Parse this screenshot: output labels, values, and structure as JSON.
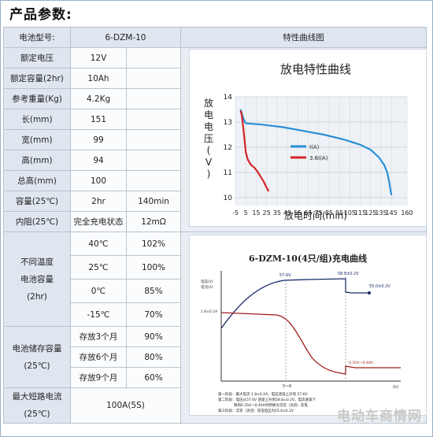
{
  "title": "产品参数:",
  "header": {
    "model_label": "电池型号:",
    "model_value": "6-DZM-10",
    "chart_header": "特性曲线图"
  },
  "specs": {
    "rated_voltage": {
      "label": "额定电压",
      "value": "12V"
    },
    "rated_capacity": {
      "label": "额定容量(2hr)",
      "value": "10Ah"
    },
    "weight": {
      "label": "参考重量(Kg)",
      "value": "4.2Kg"
    },
    "length": {
      "label": "长(mm)",
      "value": "151"
    },
    "width": {
      "label": "宽(mm)",
      "value": "99"
    },
    "height": {
      "label": "高(mm)",
      "value": "94"
    },
    "total_height": {
      "label": "总高(mm)",
      "value": "100"
    },
    "capacity_25": {
      "label": "容量(25℃)",
      "value": "2hr",
      "value2": "140min"
    },
    "internal_resistance": {
      "label": "内阻(25℃)",
      "value": "完全充电状态",
      "value2": "12mΩ"
    },
    "temp_capacity": {
      "label1": "不同温度",
      "label2": "电池容量",
      "label3": "(2hr)",
      "rows": [
        {
          "temp": "40℃",
          "pct": "102%"
        },
        {
          "temp": "25℃",
          "pct": "100%"
        },
        {
          "temp": "0℃",
          "pct": "85%"
        },
        {
          "temp": "-15℃",
          "pct": "70%"
        }
      ]
    },
    "storage_capacity": {
      "label1": "电池储存容量",
      "label2": "(25℃)",
      "rows": [
        {
          "period": "存放3个月",
          "pct": "90%"
        },
        {
          "period": "存放6个月",
          "pct": "80%"
        },
        {
          "period": "存放9个月",
          "pct": "60%"
        }
      ]
    },
    "max_short_current": {
      "label1": "最大短路电流",
      "label2": "(25℃)",
      "value": "100A(5S)"
    }
  },
  "chart_data": [
    {
      "type": "line",
      "title": "放电特性曲线",
      "xlabel": "放电时间(min)",
      "ylabel": "放电电压(V)",
      "xlim": [
        -5,
        160
      ],
      "ylim": [
        10,
        14
      ],
      "xticks": [
        -5,
        5,
        15,
        25,
        35,
        45,
        55,
        65,
        75,
        85,
        95,
        105,
        115,
        125,
        135,
        145,
        160
      ],
      "yticks": [
        10,
        11,
        12,
        13,
        14
      ],
      "grid": true,
      "legend": "center-right",
      "series": [
        {
          "name": "I(A)",
          "color": "#2b8fd6",
          "x": [
            0,
            3,
            5,
            20,
            40,
            60,
            80,
            100,
            115,
            125,
            133,
            138,
            141,
            143,
            145
          ],
          "y": [
            13.5,
            13.1,
            12.95,
            12.9,
            12.8,
            12.65,
            12.5,
            12.3,
            12.1,
            11.9,
            11.6,
            11.3,
            11.0,
            10.6,
            10.1
          ]
        },
        {
          "name": "3.6I(A)",
          "color": "#d42626",
          "x": [
            0,
            1,
            2,
            3,
            4,
            5,
            7,
            10,
            13,
            16,
            19,
            22,
            25,
            27
          ],
          "y": [
            13.45,
            13.3,
            13.0,
            12.6,
            12.2,
            11.8,
            11.5,
            11.3,
            11.2,
            11.05,
            10.85,
            10.65,
            10.4,
            10.25
          ]
        }
      ]
    },
    {
      "type": "line",
      "title": "6-DZM-10(4只/组)充电曲线",
      "xlabel": "(h)",
      "annotations": {
        "y_left_top": "电压(V)",
        "y_left_bottom": "电流(A)",
        "left_current": "1.8±0.2A",
        "v1": "57.6V",
        "v2": "58.8±0.2V",
        "v3": "55.0±0.2V",
        "end_current": "0.35A～0.40A",
        "x_mark": "5～6"
      },
      "series": [
        {
          "name": "voltage",
          "color": "#1a2a6b"
        },
        {
          "name": "current",
          "color": "#9e1c1c"
        }
      ],
      "notes": [
        "第一阶段：最大电流 1.8±0.2A，电压逐渐上升到 57.6V",
        "第二阶段：电压从57.6V 逐渐上升到58.8±0.2V，电流逐渐下",
        "降到0.35A～0.40A时转换为浮充（涓流）充电",
        "第三阶段：浮充（涓流）充电电压为55.0±0.2V"
      ]
    }
  ],
  "watermark": "电动车商情网"
}
